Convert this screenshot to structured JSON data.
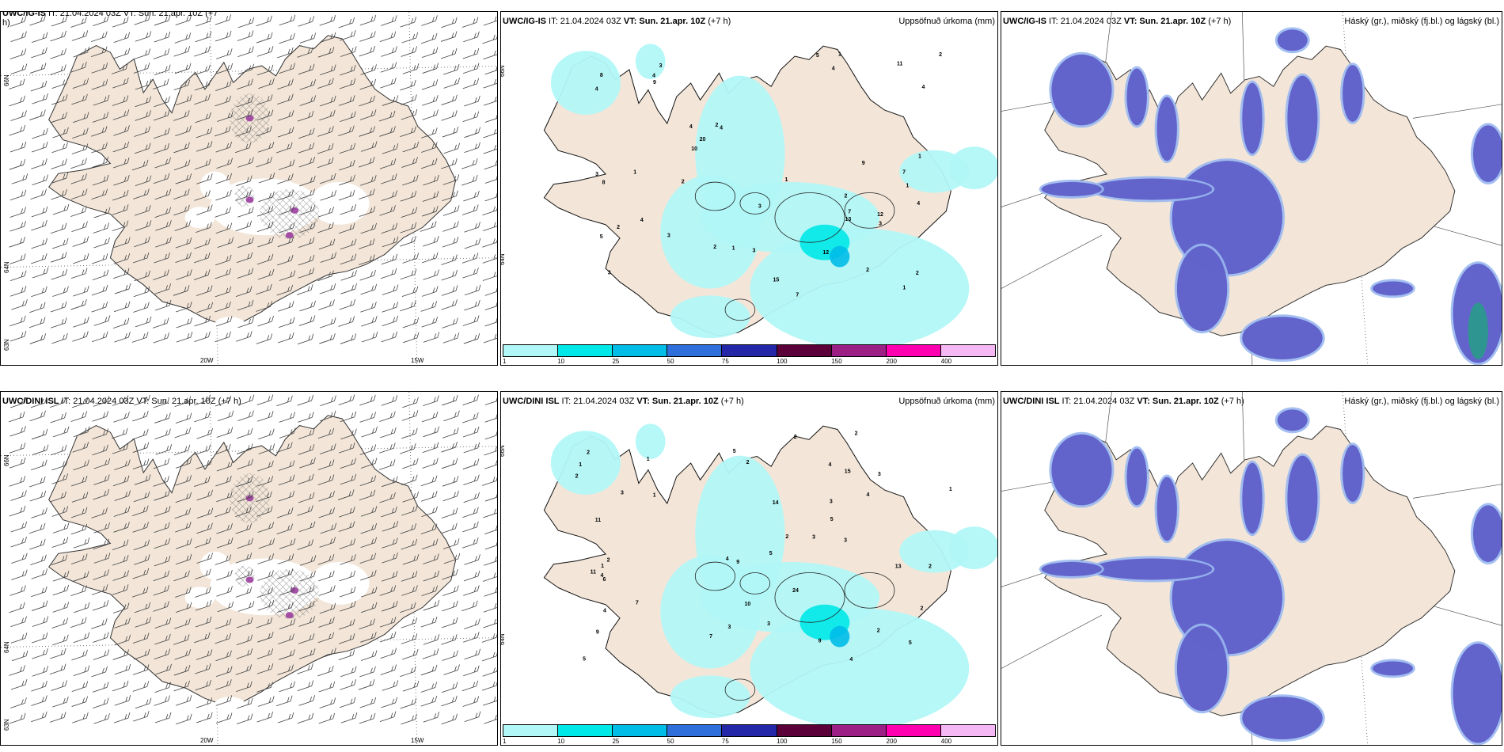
{
  "rows": [
    {
      "wind": {
        "header_model": "UWC/IG-IS",
        "header_rest": " IT: 21.04.2024 03Z VT: Sun. 21.apr. 10Z (+7",
        "header_wrap": "h)"
      },
      "precip": {
        "header_model": "UWC/IG-IS",
        "header_it": " IT: 21.04.2024 03Z ",
        "header_vt": "VT: Sun. 21.apr. 10Z",
        "header_lead": " (+7 h)",
        "header_right": "Uppsöfnuð úrkoma (mm)"
      },
      "cloud": {
        "header_model": "UWC/IG-IS",
        "header_it": " IT: 21.04.2024 03Z ",
        "header_vt": "VT: Sun. 21.apr. 10Z",
        "header_lead": " (+7 h)",
        "header_right": "Háský (gr.), miðský (fj.bl.) og lágský (bl.)"
      }
    },
    {
      "wind": {
        "header_model": "UWC/DINI ISL",
        "header_rest": " IT: 21.04.2024 03Z VT: Sun. 21.apr. 10Z (+7 h)",
        "header_wrap": ""
      },
      "precip": {
        "header_model": "UWC/DINI ISL",
        "header_it": " IT: 21.04.2024 03Z ",
        "header_vt": "VT: Sun. 21.apr. 10Z",
        "header_lead": " (+7 h)",
        "header_right": "Uppsöfnuð úrkoma (mm)"
      },
      "cloud": {
        "header_model": "UWC/DINI ISL",
        "header_it": " IT: 21.04.2024 03Z ",
        "header_vt": "VT: Sun. 21.apr. 10Z",
        "header_lead": " (+7 h)",
        "header_right": "Háský (gr.), miðský (fj.bl.) og lágský (bl.)"
      }
    }
  ],
  "axis": {
    "lon_20": "20W",
    "lon_15": "15W",
    "lat_66": "66N",
    "lat_64": "64N",
    "lat_63": "63N"
  },
  "colorbar": {
    "colors": [
      "#b2f7f7",
      "#00e8e8",
      "#00bde8",
      "#2f6fdb",
      "#2327a8",
      "#5c0039",
      "#9c1f86",
      "#ff00b0",
      "#f5b8f5"
    ],
    "ticks": [
      "1",
      "10",
      "25",
      "50",
      "75",
      "100",
      "150",
      "200",
      "400"
    ]
  },
  "precip_values_top": [
    "2",
    "1",
    "3",
    "3",
    "4",
    "2",
    "5",
    "4",
    "4",
    "7",
    "4",
    "3",
    "8",
    "2",
    "2",
    "1",
    "3",
    "1",
    "2",
    "4",
    "2",
    "11",
    "10",
    "4",
    "5",
    "4",
    "7",
    "8",
    "9",
    "9",
    "15",
    "12",
    "20",
    "2",
    "7",
    "3",
    "13",
    "1",
    "3",
    "2",
    "4",
    "1",
    "1",
    "1",
    "12",
    "3"
  ],
  "precip_values_bottom": [
    "2",
    "1",
    "3",
    "4",
    "5",
    "3",
    "5",
    "7",
    "9",
    "7",
    "6",
    "4",
    "3",
    "1",
    "2",
    "1",
    "3",
    "9",
    "14",
    "5",
    "5",
    "11",
    "10",
    "4",
    "2",
    "24",
    "15",
    "2",
    "2",
    "5",
    "9",
    "3",
    "3",
    "2",
    "2",
    "2",
    "1",
    "1",
    "13",
    "3",
    "11",
    "4",
    "4",
    "2",
    "2",
    "4"
  ],
  "colors": {
    "land": "#f3e6d9",
    "precip_light": "#b2f7f7",
    "precip_mid": "#00e8e8",
    "cloud_high": "#5f5fc8",
    "cloud_low": "#9ab8f0",
    "cyan": "#00d0f0"
  }
}
